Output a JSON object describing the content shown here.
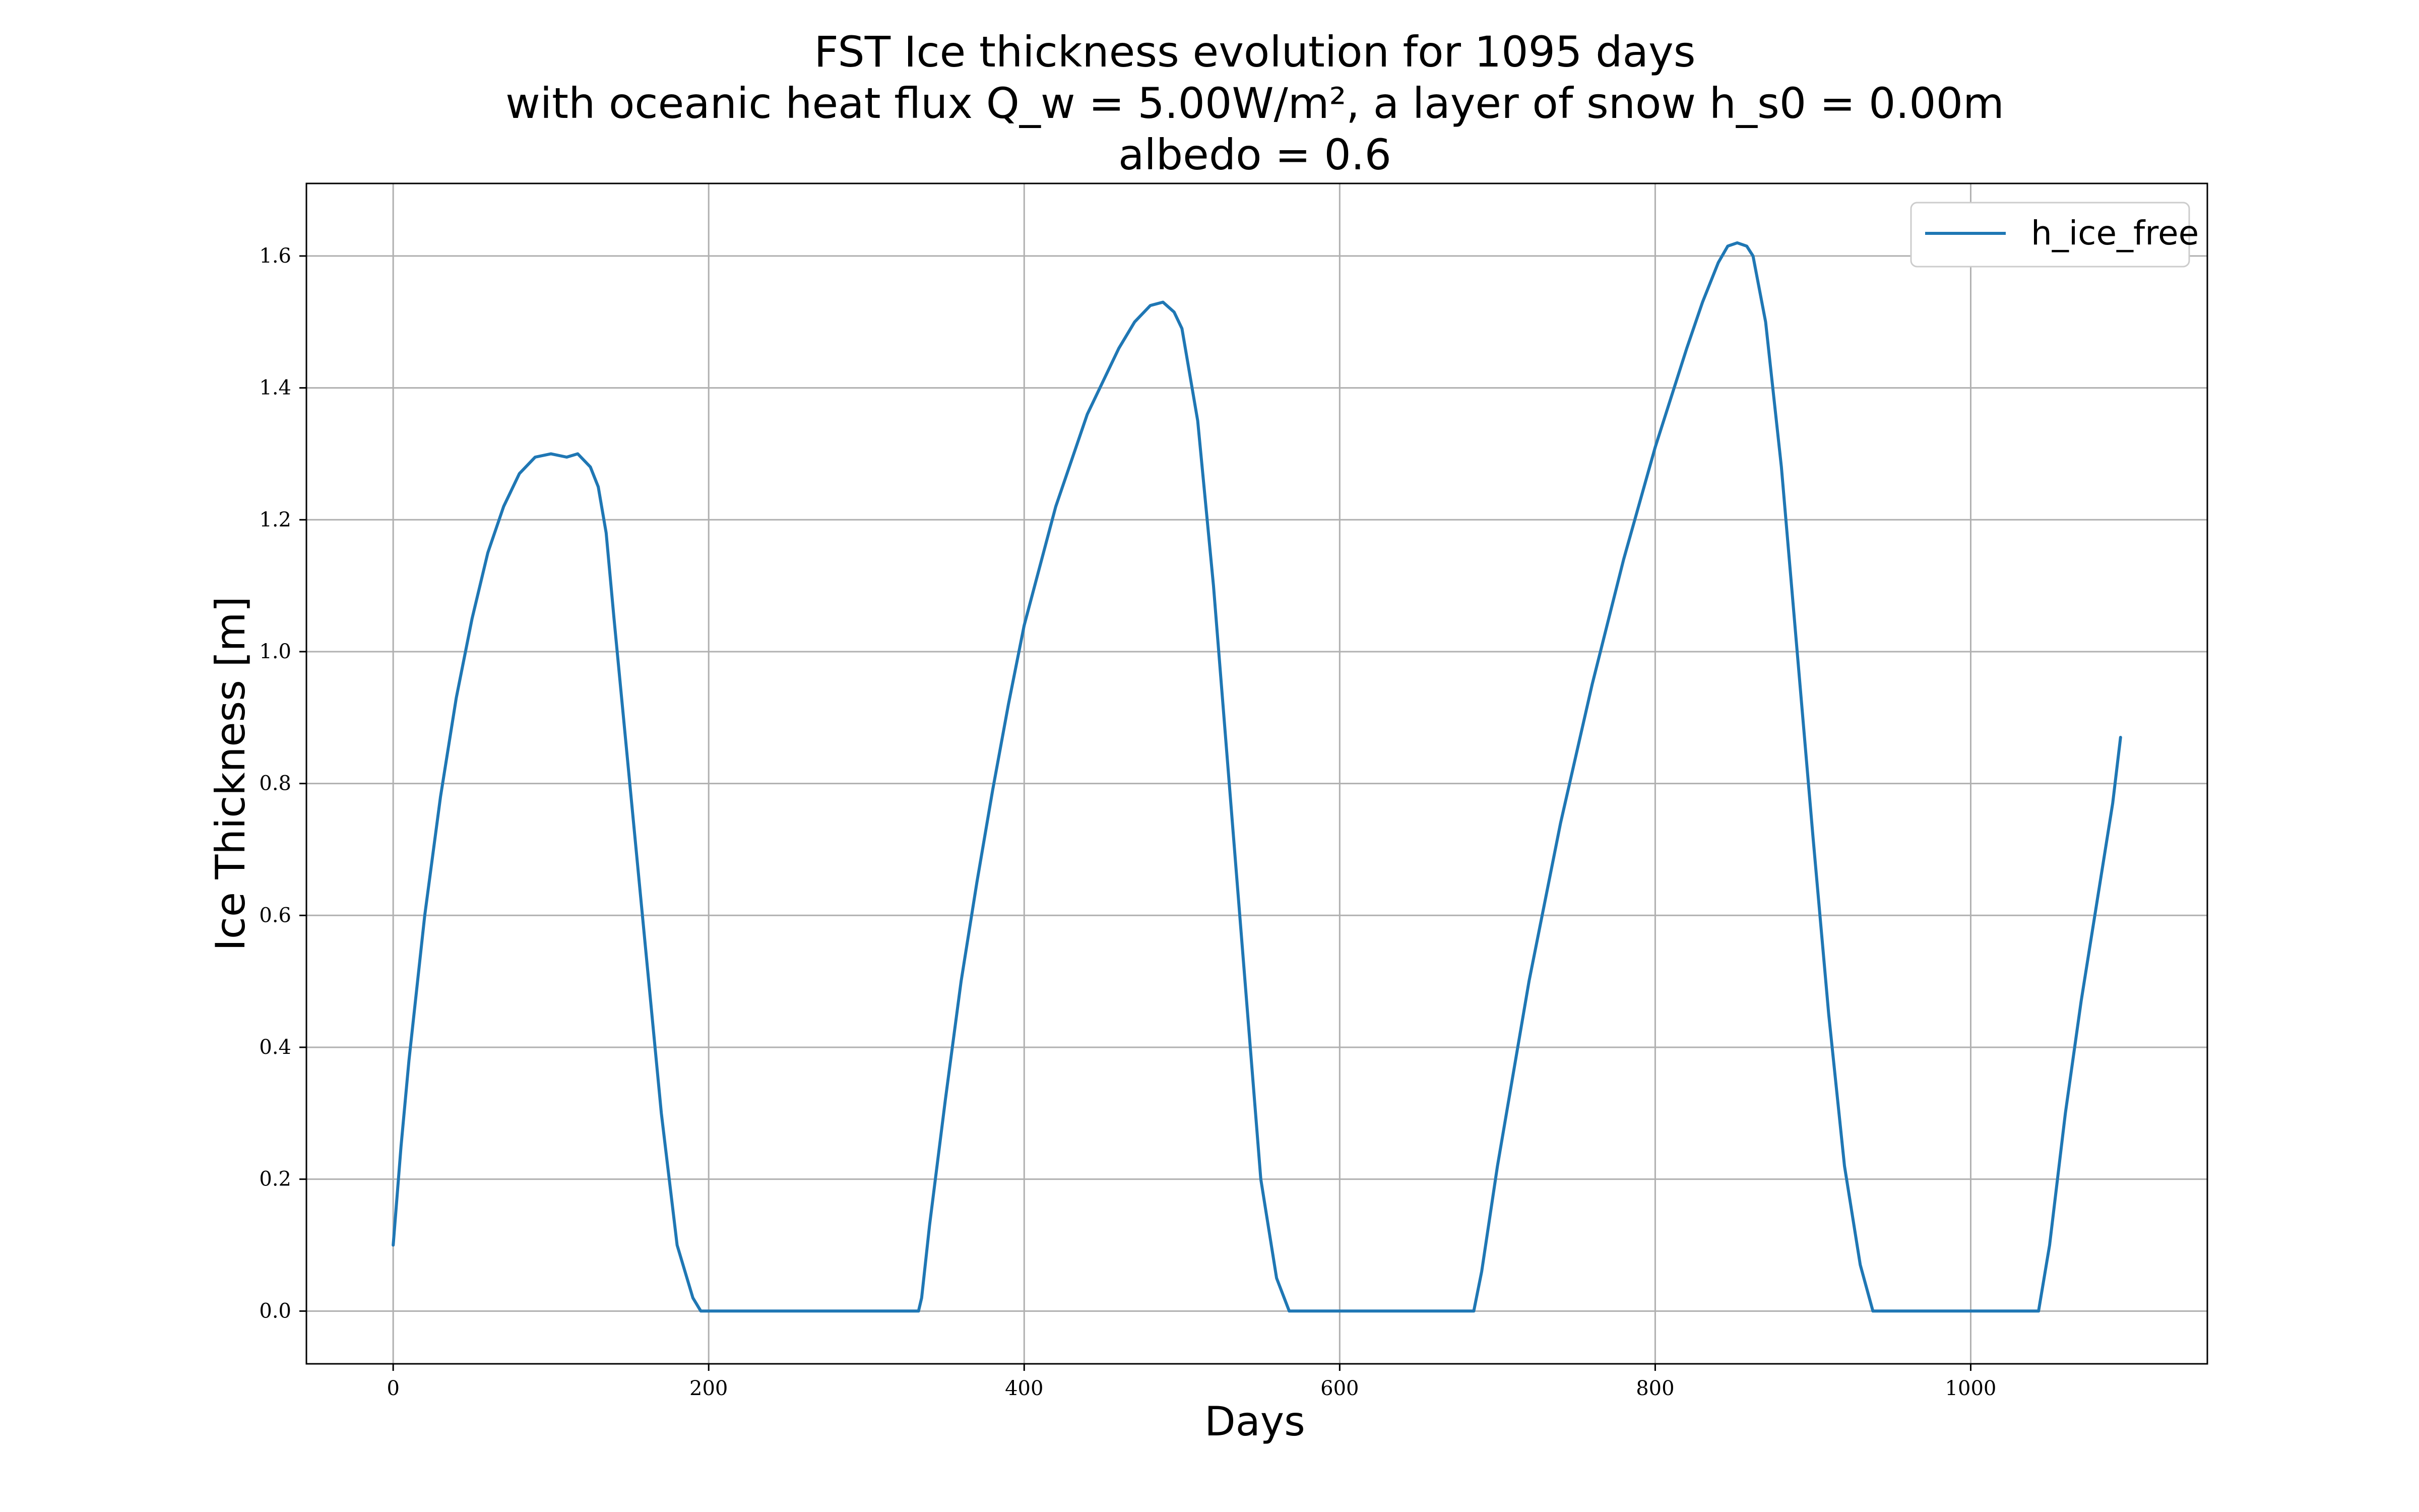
{
  "chart_data": {
    "type": "line",
    "title": [
      "FST Ice thickness evolution for 1095 days",
      "with oceanic heat flux Q_w = 5.00W/m², a layer of snow h_s0 = 0.00m",
      "albedo = 0.6"
    ],
    "xlabel": "Days",
    "ylabel": "Ice Thickness [m]",
    "xlim": [
      -55,
      1150
    ],
    "ylim": [
      -0.08,
      1.71
    ],
    "xticks": [
      0,
      200,
      400,
      600,
      800,
      1000
    ],
    "xtick_labels": [
      "0",
      "200",
      "400",
      "600",
      "800",
      "1000"
    ],
    "yticks": [
      0.0,
      0.2,
      0.4,
      0.6,
      0.8,
      1.0,
      1.2,
      1.4,
      1.6
    ],
    "ytick_labels": [
      "0.0",
      "0.2",
      "0.4",
      "0.6",
      "0.8",
      "1.0",
      "1.2",
      "1.4",
      "1.6"
    ],
    "grid": true,
    "legend_position": "top-right",
    "series": [
      {
        "name": "h_ice_free",
        "color": "#1f77b4",
        "x": [
          0,
          5,
          10,
          20,
          30,
          40,
          50,
          60,
          70,
          80,
          90,
          100,
          110,
          117,
          125,
          130,
          135,
          140,
          150,
          160,
          170,
          180,
          190,
          195,
          200,
          250,
          300,
          333,
          335,
          340,
          350,
          360,
          370,
          380,
          390,
          400,
          420,
          440,
          460,
          470,
          480,
          488,
          495,
          500,
          510,
          520,
          530,
          540,
          550,
          560,
          568,
          570,
          600,
          650,
          685,
          690,
          700,
          720,
          740,
          760,
          780,
          800,
          820,
          830,
          840,
          846,
          852,
          858,
          862,
          870,
          880,
          890,
          900,
          910,
          920,
          930,
          938,
          940,
          1000,
          1043,
          1050,
          1060,
          1070,
          1080,
          1090,
          1095
        ],
        "y": [
          0.1,
          0.25,
          0.38,
          0.6,
          0.78,
          0.93,
          1.05,
          1.15,
          1.22,
          1.27,
          1.295,
          1.3,
          1.295,
          1.3,
          1.28,
          1.25,
          1.18,
          1.05,
          0.8,
          0.55,
          0.3,
          0.1,
          0.02,
          0.0,
          0.0,
          0.0,
          0.0,
          0.0,
          0.02,
          0.13,
          0.32,
          0.5,
          0.65,
          0.79,
          0.92,
          1.04,
          1.22,
          1.36,
          1.46,
          1.5,
          1.525,
          1.53,
          1.515,
          1.49,
          1.35,
          1.1,
          0.8,
          0.5,
          0.2,
          0.05,
          0.0,
          0.0,
          0.0,
          0.0,
          0.0,
          0.06,
          0.22,
          0.5,
          0.74,
          0.95,
          1.14,
          1.31,
          1.46,
          1.53,
          1.59,
          1.615,
          1.62,
          1.615,
          1.6,
          1.5,
          1.28,
          1.0,
          0.72,
          0.45,
          0.22,
          0.07,
          0.0,
          0.0,
          0.0,
          0.0,
          0.1,
          0.3,
          0.47,
          0.62,
          0.77,
          0.87
        ]
      }
    ]
  }
}
